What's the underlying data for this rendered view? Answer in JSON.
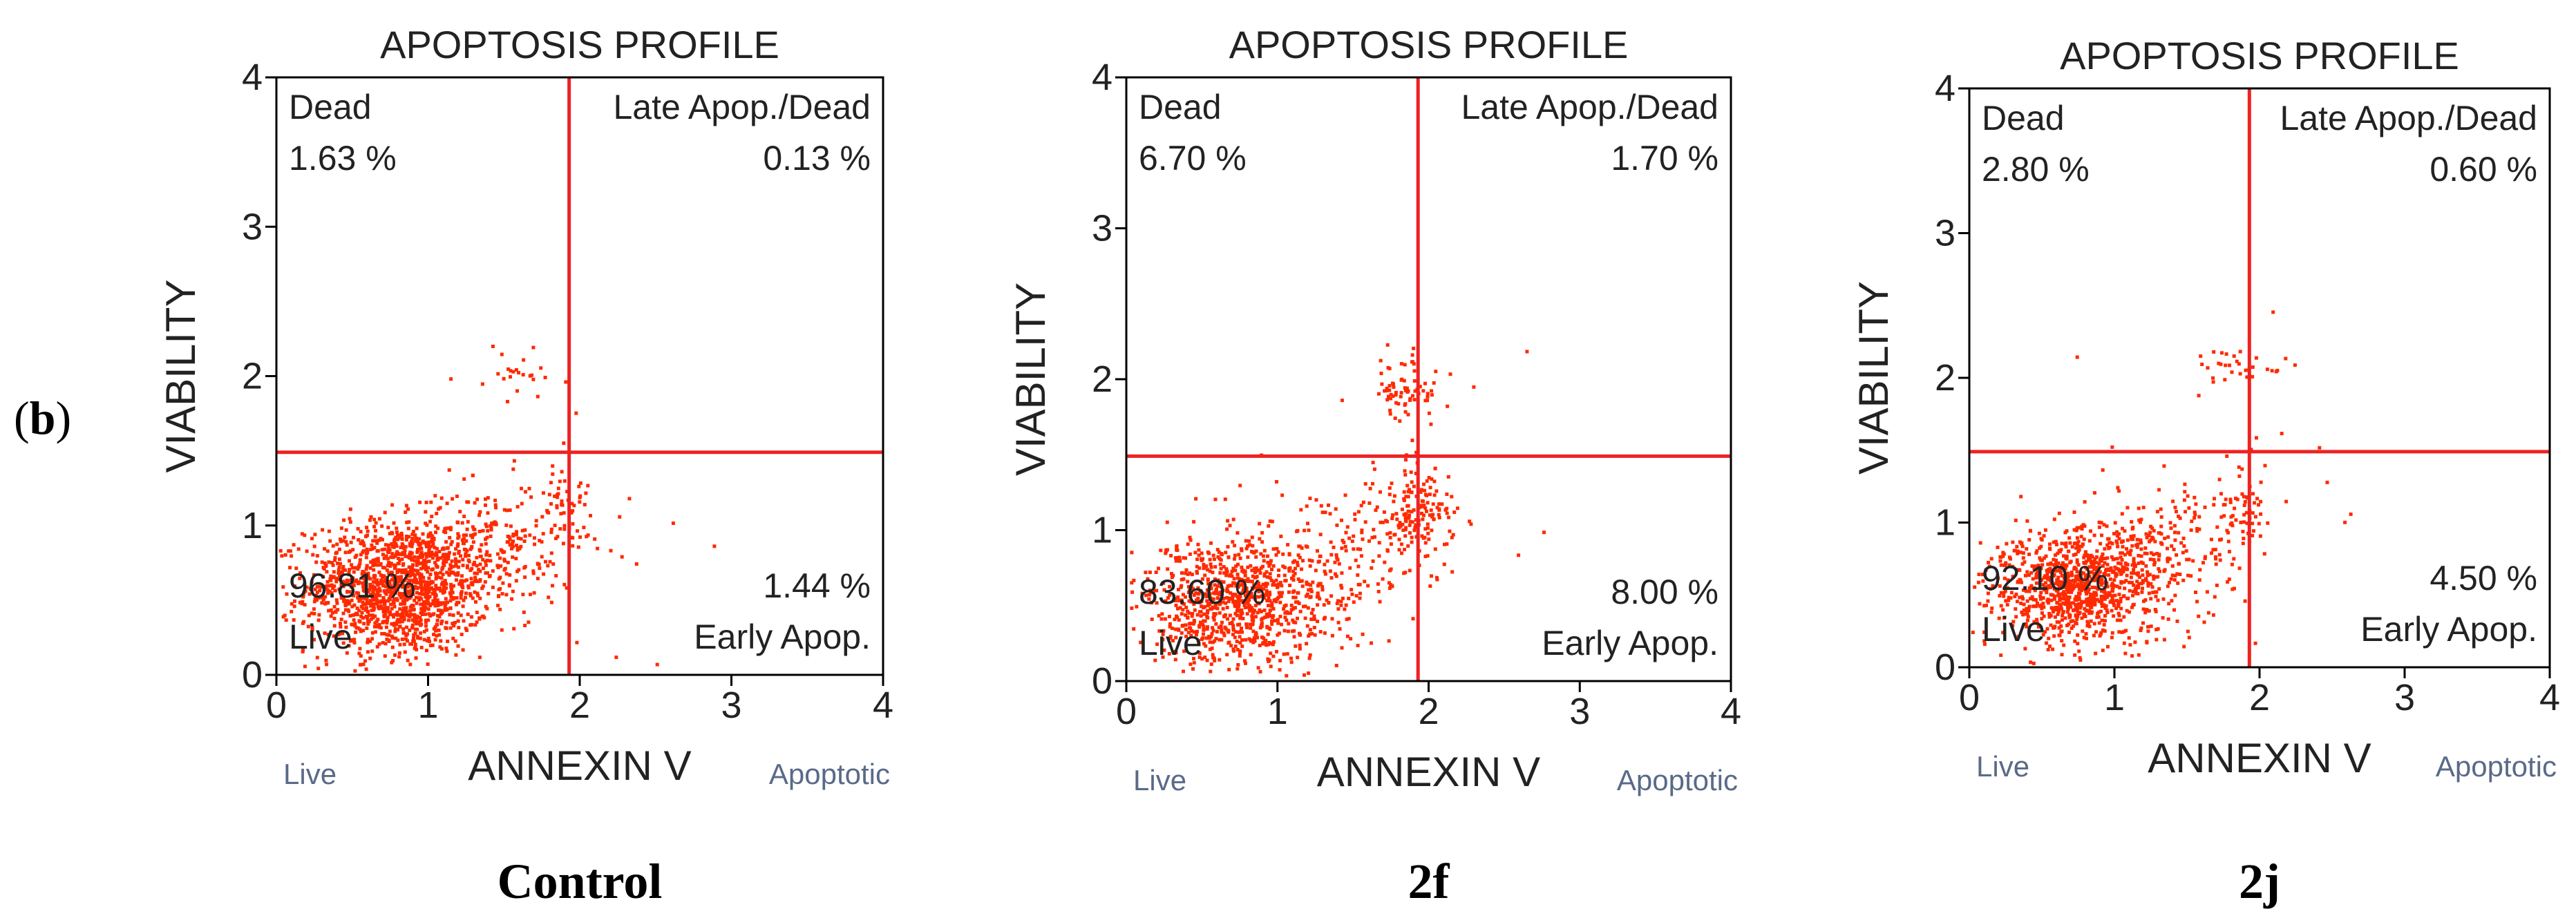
{
  "figure": {
    "panel_label": "(b)",
    "panel_label_letter": "b",
    "point_color": "#ff2a00",
    "divider_color": "#ee2222",
    "axis_color": "#000000"
  },
  "chart_data": [
    {
      "type": "scatter",
      "caption": "Control",
      "title": "APOPTOSIS PROFILE",
      "xlabel": "ANNEXIN V",
      "ylabel": "VIABILITY",
      "x_left_note": "Live",
      "x_right_note": "Apoptotic",
      "xlim": [
        0,
        4
      ],
      "ylim": [
        0,
        4
      ],
      "xticks": [
        "0",
        "1",
        "2",
        "3",
        "4"
      ],
      "yticks": [
        "0",
        "1",
        "2",
        "3",
        "4"
      ],
      "gate_x": 1.93,
      "gate_y": 1.49,
      "quadrants": {
        "upper_left": {
          "name": "Dead",
          "value": "1.63 %"
        },
        "upper_right": {
          "name": "Late Apop./Dead",
          "value": "0.13 %"
        },
        "lower_left": {
          "name": "Live",
          "value": "96.81 %"
        },
        "lower_right": {
          "name": "Early Apop.",
          "value": "1.44 %"
        }
      },
      "clusters": [
        {
          "cx": 0.8,
          "cy": 0.58,
          "sx": 0.3,
          "sy": 0.22,
          "n": 1400
        },
        {
          "cx": 1.4,
          "cy": 0.85,
          "sx": 0.28,
          "sy": 0.22,
          "n": 260
        },
        {
          "cx": 1.9,
          "cy": 1.15,
          "sx": 0.08,
          "sy": 0.12,
          "n": 40
        },
        {
          "cx": 1.6,
          "cy": 2.0,
          "sx": 0.15,
          "sy": 0.08,
          "n": 24
        },
        {
          "cx": 2.0,
          "cy": 1.3,
          "sx": 0.35,
          "sy": 0.5,
          "n": 20
        }
      ]
    },
    {
      "type": "scatter",
      "caption": "2f",
      "title": "APOPTOSIS PROFILE",
      "xlabel": "ANNEXIN V",
      "ylabel": "VIABILITY",
      "x_left_note": "Live",
      "x_right_note": "Apoptotic",
      "xlim": [
        0,
        4
      ],
      "ylim": [
        0,
        4
      ],
      "xticks": [
        "0",
        "1",
        "2",
        "3",
        "4"
      ],
      "yticks": [
        "0",
        "1",
        "2",
        "3",
        "4"
      ],
      "gate_x": 1.93,
      "gate_y": 1.49,
      "quadrants": {
        "upper_left": {
          "name": "Dead",
          "value": "6.70 %"
        },
        "upper_right": {
          "name": "Late Apop./Dead",
          "value": "1.70 %"
        },
        "lower_left": {
          "name": "Live",
          "value": "83.60 %"
        },
        "lower_right": {
          "name": "Early Apop.",
          "value": "8.00 %"
        }
      },
      "clusters": [
        {
          "cx": 0.7,
          "cy": 0.52,
          "sx": 0.32,
          "sy": 0.22,
          "n": 900
        },
        {
          "cx": 1.4,
          "cy": 0.8,
          "sx": 0.3,
          "sy": 0.25,
          "n": 160
        },
        {
          "cx": 1.92,
          "cy": 1.1,
          "sx": 0.12,
          "sy": 0.15,
          "n": 150
        },
        {
          "cx": 1.85,
          "cy": 1.95,
          "sx": 0.1,
          "sy": 0.1,
          "n": 70
        },
        {
          "cx": 2.0,
          "cy": 1.5,
          "sx": 0.4,
          "sy": 0.5,
          "n": 25
        }
      ]
    },
    {
      "type": "scatter",
      "caption": "2j",
      "title": "APOPTOSIS PROFILE",
      "xlabel": "ANNEXIN V",
      "ylabel": "VIABILITY",
      "x_left_note": "Live",
      "x_right_note": "Apoptotic",
      "xlim": [
        0,
        4
      ],
      "ylim": [
        0,
        4
      ],
      "xticks": [
        "0",
        "1",
        "2",
        "3",
        "4"
      ],
      "yticks": [
        "0",
        "1",
        "2",
        "3",
        "4"
      ],
      "gate_x": 1.93,
      "gate_y": 1.49,
      "quadrants": {
        "upper_left": {
          "name": "Dead",
          "value": "2.80 %"
        },
        "upper_right": {
          "name": "Late Apop./Dead",
          "value": "0.60 %"
        },
        "lower_left": {
          "name": "Live",
          "value": "92.10 %"
        },
        "lower_right": {
          "name": "Early Apop.",
          "value": "4.50 %"
        }
      },
      "clusters": [
        {
          "cx": 0.75,
          "cy": 0.55,
          "sx": 0.3,
          "sy": 0.2,
          "n": 1000
        },
        {
          "cx": 1.35,
          "cy": 0.8,
          "sx": 0.28,
          "sy": 0.25,
          "n": 180
        },
        {
          "cx": 1.85,
          "cy": 1.05,
          "sx": 0.1,
          "sy": 0.15,
          "n": 60
        },
        {
          "cx": 1.8,
          "cy": 2.08,
          "sx": 0.15,
          "sy": 0.06,
          "n": 30
        },
        {
          "cx": 2.1,
          "cy": 1.4,
          "sx": 0.4,
          "sy": 0.5,
          "n": 15
        }
      ]
    }
  ]
}
